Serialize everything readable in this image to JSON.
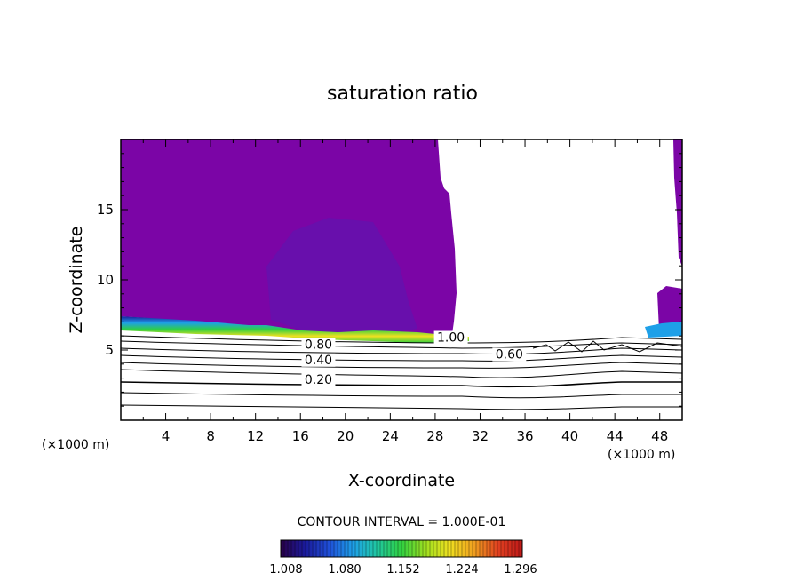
{
  "chart_data": {
    "type": "contour",
    "title": "saturation ratio",
    "xlabel": "X-coordinate",
    "ylabel": "Z-coordinate",
    "x_unit": "(×1000 m)",
    "z_unit": "(×1000 m)",
    "xlim": [
      0,
      50
    ],
    "ylim": [
      0,
      20
    ],
    "x_ticks": [
      4,
      8,
      12,
      16,
      20,
      24,
      28,
      32,
      36,
      40,
      44,
      48
    ],
    "y_ticks": [
      5,
      10,
      15
    ],
    "contour_interval": "CONTOUR INTERVAL = 1.000E-01",
    "contour_labels": [
      {
        "text": "0.80",
        "x": 17.6,
        "z": 5.1
      },
      {
        "text": "0.40",
        "x": 17.6,
        "z": 4.0
      },
      {
        "text": "0.20",
        "x": 17.6,
        "z": 2.6
      },
      {
        "text": "1.00",
        "x": 29.4,
        "z": 5.6
      },
      {
        "text": "0.60",
        "x": 34.6,
        "z": 4.4
      }
    ],
    "colorbar": {
      "ticks": [
        "1.008",
        "1.080",
        "1.152",
        "1.224",
        "1.296"
      ],
      "colors": [
        "#2a0048",
        "#1a1a9a",
        "#1f4fd8",
        "#1ea0e8",
        "#20c8a0",
        "#30d040",
        "#a0e020",
        "#f0e020",
        "#f0a020",
        "#e04020",
        "#c01818"
      ]
    },
    "colors": {
      "supersaturated_region": "#7b05a6",
      "contour_lines": "#000000",
      "frame": "#000000"
    }
  }
}
